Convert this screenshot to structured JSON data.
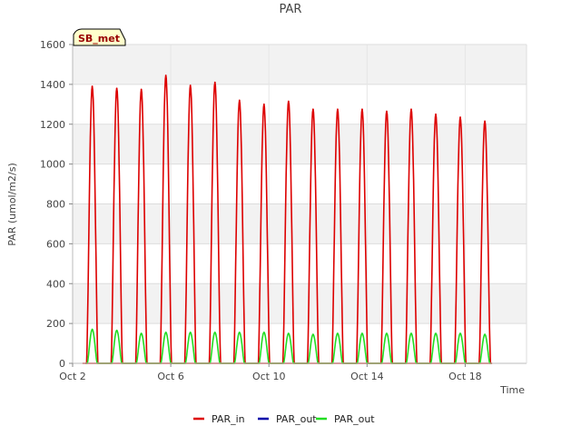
{
  "chart_data": {
    "type": "line",
    "title": "PAR",
    "xlabel": "Time",
    "ylabel": "PAR (umol/m2/s)",
    "site_label": "SB_met",
    "ylim": [
      0,
      1600
    ],
    "xlim": [
      0,
      18.5
    ],
    "x_unit": "days since Oct 2",
    "yticks": [
      0,
      200,
      400,
      600,
      800,
      1000,
      1200,
      1400,
      1600
    ],
    "xticks": [
      {
        "label": "Oct 2",
        "x": 0
      },
      {
        "label": "Oct 6",
        "x": 4
      },
      {
        "label": "Oct 10",
        "x": 8
      },
      {
        "label": "Oct 14",
        "x": 12
      },
      {
        "label": "Oct 18",
        "x": 16
      }
    ],
    "grid": true,
    "legend_position": "bottom",
    "series": [
      {
        "name": "PAR_in",
        "color": "#dd0000",
        "daily_peak_day": [
          0.8,
          1.8,
          2.8,
          3.8,
          4.8,
          5.8,
          6.8,
          7.8,
          8.8,
          9.8,
          10.8,
          11.8,
          12.8,
          13.8,
          14.8,
          15.8,
          16.8
        ],
        "daily_peak_value": [
          1390,
          1380,
          1375,
          1445,
          1395,
          1410,
          1320,
          1300,
          1315,
          1275,
          1275,
          1275,
          1265,
          1275,
          1250,
          1235,
          1215
        ]
      },
      {
        "name": "PAR_out",
        "color": "#0000aa",
        "daily_peak_day": [],
        "daily_peak_value": []
      },
      {
        "name": "PAR_out",
        "color": "#22dd22",
        "daily_peak_day": [
          0.8,
          1.8,
          2.8,
          3.8,
          4.8,
          5.8,
          6.8,
          7.8,
          8.8,
          9.8,
          10.8,
          11.8,
          12.8,
          13.8,
          14.8,
          15.8,
          16.8
        ],
        "daily_peak_value": [
          170,
          165,
          150,
          155,
          155,
          155,
          155,
          155,
          150,
          145,
          150,
          150,
          150,
          150,
          150,
          150,
          145
        ]
      }
    ]
  }
}
